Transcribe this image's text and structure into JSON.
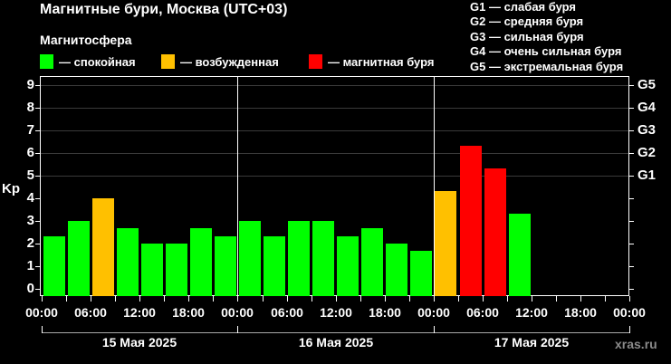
{
  "header": {
    "title": "Магнитные бури, Москва (UTC+03)",
    "subtitle": "Магнитосфера"
  },
  "legend": {
    "items": [
      {
        "label": "— спокойная",
        "color": "#00ff00"
      },
      {
        "label": "— возбужденная",
        "color": "#ffc000"
      },
      {
        "label": "— магнитная буря",
        "color": "#ff0000"
      }
    ]
  },
  "storm_scale": {
    "items": [
      "G1 — слабая буря",
      "G2 — средняя буря",
      "G3 — сильная буря",
      "G4 — очень сильная буря",
      "G5 — экстремальная буря"
    ]
  },
  "axes": {
    "ylabel": "Kp",
    "yticks": [
      "0",
      "1",
      "2",
      "3",
      "4",
      "5",
      "6",
      "7",
      "8",
      "9"
    ],
    "right_ticks": [
      "G1",
      "G2",
      "G3",
      "G4",
      "G5"
    ],
    "xticks": [
      "00:00",
      "06:00",
      "12:00",
      "18:00",
      "00:00",
      "06:00",
      "12:00",
      "18:00",
      "00:00",
      "06:00",
      "12:00",
      "18:00",
      "00:00"
    ],
    "days": [
      "15 Мая 2025",
      "16 Мая 2025",
      "17 Мая 2025"
    ]
  },
  "watermark": "xras.ru",
  "chart_data": {
    "type": "bar",
    "title": "Магнитные бури, Москва (UTC+03)",
    "subtitle": "Магнитосфера",
    "xlabel": "",
    "ylabel": "Kp",
    "ylim": [
      0,
      9
    ],
    "grid": true,
    "legend_position": "top",
    "categories": [
      "15 Мая 00:00",
      "15 Мая 03:00",
      "15 Мая 06:00",
      "15 Мая 09:00",
      "15 Мая 12:00",
      "15 Мая 15:00",
      "15 Мая 18:00",
      "15 Мая 21:00",
      "16 Мая 00:00",
      "16 Мая 03:00",
      "16 Мая 06:00",
      "16 Мая 09:00",
      "16 Мая 12:00",
      "16 Мая 15:00",
      "16 Мая 18:00",
      "16 Мая 21:00",
      "17 Мая 00:00",
      "17 Мая 03:00",
      "17 Мая 06:00",
      "17 Мая 09:00"
    ],
    "values": [
      2.33,
      3.0,
      4.0,
      2.67,
      2.0,
      2.0,
      2.67,
      2.33,
      3.0,
      2.33,
      3.0,
      3.0,
      2.33,
      2.67,
      2.0,
      1.67,
      4.33,
      6.33,
      5.33,
      3.33
    ],
    "levels": [
      "calm",
      "calm",
      "active",
      "calm",
      "calm",
      "calm",
      "calm",
      "calm",
      "calm",
      "calm",
      "calm",
      "calm",
      "calm",
      "calm",
      "calm",
      "calm",
      "active",
      "storm",
      "storm",
      "calm"
    ],
    "level_colors": {
      "calm": "#00ff00",
      "active": "#ffc000",
      "storm": "#ff0000"
    },
    "right_axis": {
      "G1": 5,
      "G2": 6,
      "G3": 7,
      "G4": 8,
      "G5": 9
    }
  }
}
